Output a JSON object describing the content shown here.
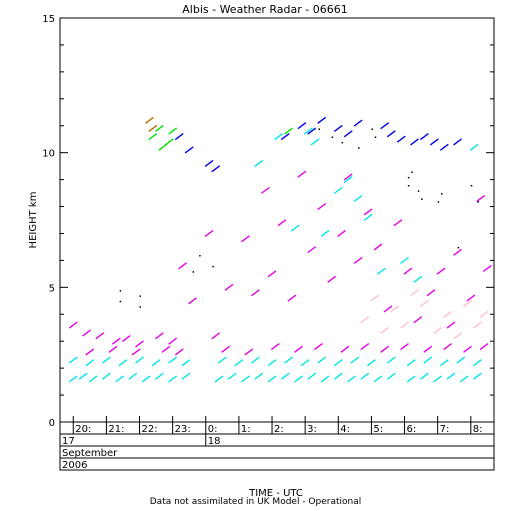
{
  "chart_data": {
    "type": "scatter",
    "title": "Albis - Weather Radar - 06661",
    "xlabel": "TIME - UTC",
    "ylabel": "HEIGHT km",
    "ylim": [
      0,
      15
    ],
    "yticks": [
      "0",
      "5",
      "10",
      "15"
    ],
    "xlim_hours": [
      19.6,
      32.7
    ],
    "time_ticks": [
      {
        "hour": 20,
        "label": "20:"
      },
      {
        "hour": 21,
        "label": "21:"
      },
      {
        "hour": 22,
        "label": "22:"
      },
      {
        "hour": 23,
        "label": "23:"
      },
      {
        "hour": 24,
        "label": "0:"
      },
      {
        "hour": 25,
        "label": "1:"
      },
      {
        "hour": 26,
        "label": "2:"
      },
      {
        "hour": 27,
        "label": "3:"
      },
      {
        "hour": 28,
        "label": "4:"
      },
      {
        "hour": 29,
        "label": "5:"
      },
      {
        "hour": 30,
        "label": "6:"
      },
      {
        "hour": 31,
        "label": "7:"
      },
      {
        "hour": 32,
        "label": "8:"
      }
    ],
    "days": [
      {
        "hour": 19.6,
        "label": "17"
      },
      {
        "hour": 24,
        "label": "18"
      }
    ],
    "month_label": "September",
    "year_label": "2006",
    "footnote": "Data not assimilated in UK Model - Operational",
    "series": [
      {
        "color": "#00e5e5",
        "points": [
          [
            20.0,
            1.6
          ],
          [
            20.3,
            1.7
          ],
          [
            20.6,
            1.6
          ],
          [
            21.0,
            1.7
          ],
          [
            21.4,
            1.6
          ],
          [
            21.8,
            1.7
          ],
          [
            22.2,
            1.6
          ],
          [
            22.6,
            1.7
          ],
          [
            23.0,
            1.6
          ],
          [
            23.4,
            1.7
          ],
          [
            24.4,
            1.6
          ],
          [
            24.8,
            1.7
          ],
          [
            25.2,
            1.6
          ],
          [
            25.6,
            1.7
          ],
          [
            26.0,
            1.6
          ],
          [
            26.4,
            1.7
          ],
          [
            26.8,
            1.6
          ],
          [
            27.2,
            1.7
          ],
          [
            27.6,
            1.6
          ],
          [
            28.0,
            1.7
          ],
          [
            28.4,
            1.6
          ],
          [
            28.8,
            1.7
          ],
          [
            29.2,
            1.6
          ],
          [
            29.6,
            1.7
          ],
          [
            30.2,
            1.6
          ],
          [
            30.6,
            1.7
          ],
          [
            31.0,
            1.6
          ],
          [
            31.4,
            1.7
          ],
          [
            31.8,
            1.6
          ],
          [
            32.2,
            1.7
          ],
          [
            20.0,
            2.3
          ],
          [
            20.5,
            2.2
          ],
          [
            21.0,
            2.3
          ],
          [
            21.5,
            2.2
          ],
          [
            22.0,
            2.3
          ],
          [
            22.5,
            2.2
          ],
          [
            23.0,
            2.3
          ],
          [
            23.4,
            2.2
          ],
          [
            24.5,
            2.3
          ],
          [
            25.0,
            2.2
          ],
          [
            25.5,
            2.3
          ],
          [
            26.0,
            2.2
          ],
          [
            26.5,
            2.3
          ],
          [
            27.0,
            2.2
          ],
          [
            27.5,
            2.3
          ],
          [
            28.0,
            2.2
          ],
          [
            28.5,
            2.3
          ],
          [
            29.0,
            2.2
          ],
          [
            29.6,
            2.3
          ],
          [
            30.2,
            2.2
          ],
          [
            30.7,
            2.3
          ],
          [
            31.2,
            2.2
          ],
          [
            31.7,
            2.3
          ],
          [
            32.2,
            2.2
          ],
          [
            25.6,
            9.6
          ],
          [
            26.2,
            10.6
          ],
          [
            26.7,
            7.2
          ],
          [
            27.1,
            10.8
          ],
          [
            27.6,
            7.0
          ],
          [
            28.0,
            8.6
          ],
          [
            28.3,
            9.0
          ],
          [
            28.9,
            7.6
          ],
          [
            29.3,
            5.6
          ],
          [
            30.0,
            6.0
          ],
          [
            30.4,
            5.3
          ],
          [
            32.1,
            10.2
          ],
          [
            27.3,
            10.4
          ],
          [
            28.6,
            8.3
          ]
        ]
      },
      {
        "color": "#e600e6",
        "points": [
          [
            20.0,
            3.6
          ],
          [
            20.4,
            3.3
          ],
          [
            20.8,
            3.2
          ],
          [
            21.3,
            3.0
          ],
          [
            21.6,
            3.1
          ],
          [
            22.0,
            2.9
          ],
          [
            22.6,
            3.2
          ],
          [
            23.0,
            3.0
          ],
          [
            23.3,
            5.8
          ],
          [
            23.6,
            4.5
          ],
          [
            24.1,
            7.0
          ],
          [
            24.3,
            3.2
          ],
          [
            24.7,
            5.0
          ],
          [
            25.2,
            6.8
          ],
          [
            25.5,
            4.8
          ],
          [
            25.8,
            8.6
          ],
          [
            26.0,
            5.5
          ],
          [
            26.3,
            7.4
          ],
          [
            26.6,
            4.6
          ],
          [
            26.9,
            9.2
          ],
          [
            27.2,
            6.4
          ],
          [
            27.5,
            8.0
          ],
          [
            27.8,
            5.3
          ],
          [
            28.1,
            7.0
          ],
          [
            28.3,
            9.1
          ],
          [
            28.6,
            6.0
          ],
          [
            28.9,
            7.8
          ],
          [
            29.2,
            6.5
          ],
          [
            29.5,
            4.2
          ],
          [
            29.8,
            7.4
          ],
          [
            30.1,
            5.6
          ],
          [
            30.4,
            3.8
          ],
          [
            30.8,
            4.8
          ],
          [
            31.1,
            5.6
          ],
          [
            31.4,
            3.6
          ],
          [
            31.6,
            6.3
          ],
          [
            32.0,
            4.6
          ],
          [
            32.3,
            8.3
          ],
          [
            32.5,
            5.7
          ],
          [
            20.5,
            2.6
          ],
          [
            21.2,
            2.7
          ],
          [
            21.9,
            2.6
          ],
          [
            22.8,
            2.7
          ],
          [
            23.2,
            2.6
          ],
          [
            24.6,
            2.7
          ],
          [
            25.3,
            2.6
          ],
          [
            26.1,
            2.8
          ],
          [
            26.8,
            2.7
          ],
          [
            27.4,
            2.8
          ],
          [
            28.2,
            2.7
          ],
          [
            28.8,
            2.8
          ],
          [
            29.4,
            2.7
          ],
          [
            30.0,
            2.8
          ],
          [
            30.7,
            2.7
          ],
          [
            31.3,
            2.8
          ],
          [
            31.9,
            2.7
          ],
          [
            32.4,
            2.8
          ]
        ]
      },
      {
        "color": "#ffc0cb",
        "points": [
          [
            28.8,
            3.8
          ],
          [
            29.1,
            4.6
          ],
          [
            29.4,
            3.4
          ],
          [
            29.7,
            4.2
          ],
          [
            30.0,
            3.6
          ],
          [
            30.3,
            4.8
          ],
          [
            30.6,
            4.4
          ],
          [
            31.0,
            3.4
          ],
          [
            31.3,
            4.0
          ],
          [
            31.6,
            3.2
          ],
          [
            31.9,
            4.4
          ],
          [
            32.2,
            3.6
          ],
          [
            32.4,
            4.0
          ]
        ]
      },
      {
        "color": "#0000e6",
        "points": [
          [
            24.1,
            9.6
          ],
          [
            24.3,
            9.4
          ],
          [
            26.4,
            10.6
          ],
          [
            26.9,
            11.0
          ],
          [
            27.2,
            10.8
          ],
          [
            27.5,
            11.2
          ],
          [
            28.0,
            10.9
          ],
          [
            28.3,
            10.7
          ],
          [
            28.6,
            11.1
          ],
          [
            29.4,
            11.0
          ],
          [
            29.6,
            10.7
          ],
          [
            29.9,
            10.5
          ],
          [
            30.3,
            10.4
          ],
          [
            30.6,
            10.6
          ],
          [
            30.9,
            10.4
          ],
          [
            31.2,
            10.2
          ],
          [
            31.6,
            10.4
          ],
          [
            23.2,
            10.6
          ],
          [
            23.5,
            10.1
          ]
        ]
      },
      {
        "color": "#00e600",
        "points": [
          [
            22.4,
            10.6
          ],
          [
            22.6,
            10.9
          ],
          [
            22.9,
            10.4
          ],
          [
            23.0,
            10.8
          ],
          [
            26.5,
            10.8
          ],
          [
            22.7,
            10.2
          ]
        ]
      },
      {
        "color": "#b86e00",
        "points": [
          [
            22.3,
            11.2
          ],
          [
            22.4,
            10.9
          ]
        ]
      },
      {
        "color": "#000000",
        "points": [
          [
            21.4,
            4.5
          ],
          [
            21.4,
            4.9
          ],
          [
            22.0,
            4.3
          ],
          [
            22.0,
            4.7
          ],
          [
            23.6,
            5.6
          ],
          [
            23.8,
            6.2
          ],
          [
            24.2,
            5.8
          ],
          [
            27.8,
            10.6
          ],
          [
            28.1,
            10.4
          ],
          [
            28.6,
            10.2
          ],
          [
            29.0,
            10.9
          ],
          [
            29.1,
            10.6
          ],
          [
            30.1,
            9.1
          ],
          [
            30.1,
            8.8
          ],
          [
            30.2,
            9.3
          ],
          [
            31.0,
            8.2
          ],
          [
            31.1,
            8.5
          ],
          [
            31.6,
            6.5
          ],
          [
            32.0,
            8.8
          ],
          [
            32.2,
            8.2
          ],
          [
            30.4,
            8.6
          ],
          [
            30.5,
            8.3
          ],
          [
            27.4,
            10.9
          ]
        ]
      }
    ]
  }
}
